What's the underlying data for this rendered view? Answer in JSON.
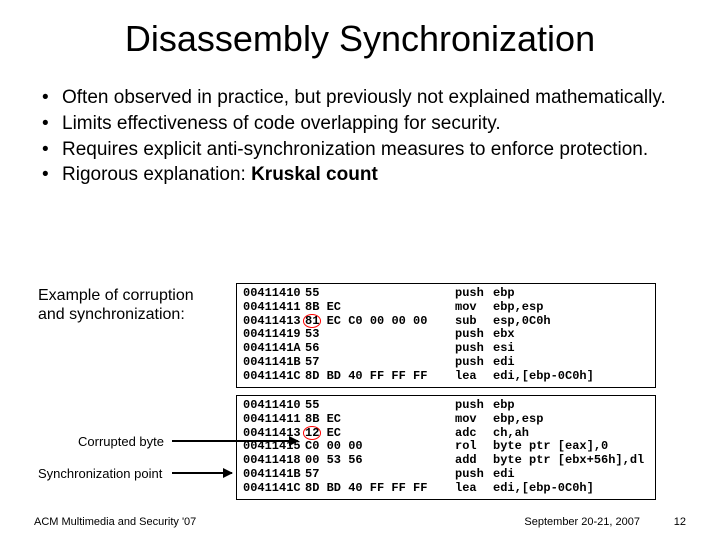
{
  "title": "Disassembly Synchronization",
  "bullets": [
    "Often observed in practice, but previously not explained mathematically.",
    "Limits effectiveness of code overlapping for security.",
    "Requires explicit anti-synchronization measures to enforce protection.",
    "Rigorous explanation: <b>Kruskal count</b>"
  ],
  "example_label": "Example of corruption and synchronization:",
  "corrupted_label": "Corrupted byte",
  "sync_label": "Synchronization point",
  "code1": [
    {
      "addr": "00411410",
      "bytes": "55",
      "op": "push",
      "args": "ebp",
      "hl": null
    },
    {
      "addr": "00411411",
      "bytes": "8B EC",
      "op": "mov",
      "args": "ebp,esp",
      "hl": null
    },
    {
      "addr": "00411413",
      "bytes": "81 EC C0 00 00 00",
      "op": "sub",
      "args": "esp,0C0h",
      "hl": 0
    },
    {
      "addr": "00411419",
      "bytes": "53",
      "op": "push",
      "args": "ebx",
      "hl": null
    },
    {
      "addr": "0041141A",
      "bytes": "56",
      "op": "push",
      "args": "esi",
      "hl": null
    },
    {
      "addr": "0041141B",
      "bytes": "57",
      "op": "push",
      "args": "edi",
      "hl": null
    },
    {
      "addr": "0041141C",
      "bytes": "8D BD 40 FF FF FF",
      "op": "lea",
      "args": "edi,[ebp-0C0h]",
      "hl": null
    }
  ],
  "code2": [
    {
      "addr": "00411410",
      "bytes": "55",
      "op": "push",
      "args": "ebp",
      "hl": null
    },
    {
      "addr": "00411411",
      "bytes": "8B EC",
      "op": "mov",
      "args": "ebp,esp",
      "hl": null
    },
    {
      "addr": "00411413",
      "bytes": "12 EC",
      "op": "adc",
      "args": "ch,ah",
      "hl": 0
    },
    {
      "addr": "00411415",
      "bytes": "C0 00 00",
      "op": "rol",
      "args": "byte ptr [eax],0",
      "hl": null
    },
    {
      "addr": "00411418",
      "bytes": "00 53 56",
      "op": "add",
      "args": "byte ptr [ebx+56h],dl",
      "hl": null
    },
    {
      "addr": "0041141B",
      "bytes": "57",
      "op": "push",
      "args": "edi",
      "hl": null
    },
    {
      "addr": "0041141C",
      "bytes": "8D BD 40 FF FF FF",
      "op": "lea",
      "args": "edi,[ebp-0C0h]",
      "hl": null
    }
  ],
  "footer_left": "ACM Multimedia and Security '07",
  "footer_right": "September 20-21, 2007",
  "footer_num": "12",
  "colors": {
    "highlight": "#ff0000",
    "text": "#000000",
    "bg": "#ffffff"
  }
}
